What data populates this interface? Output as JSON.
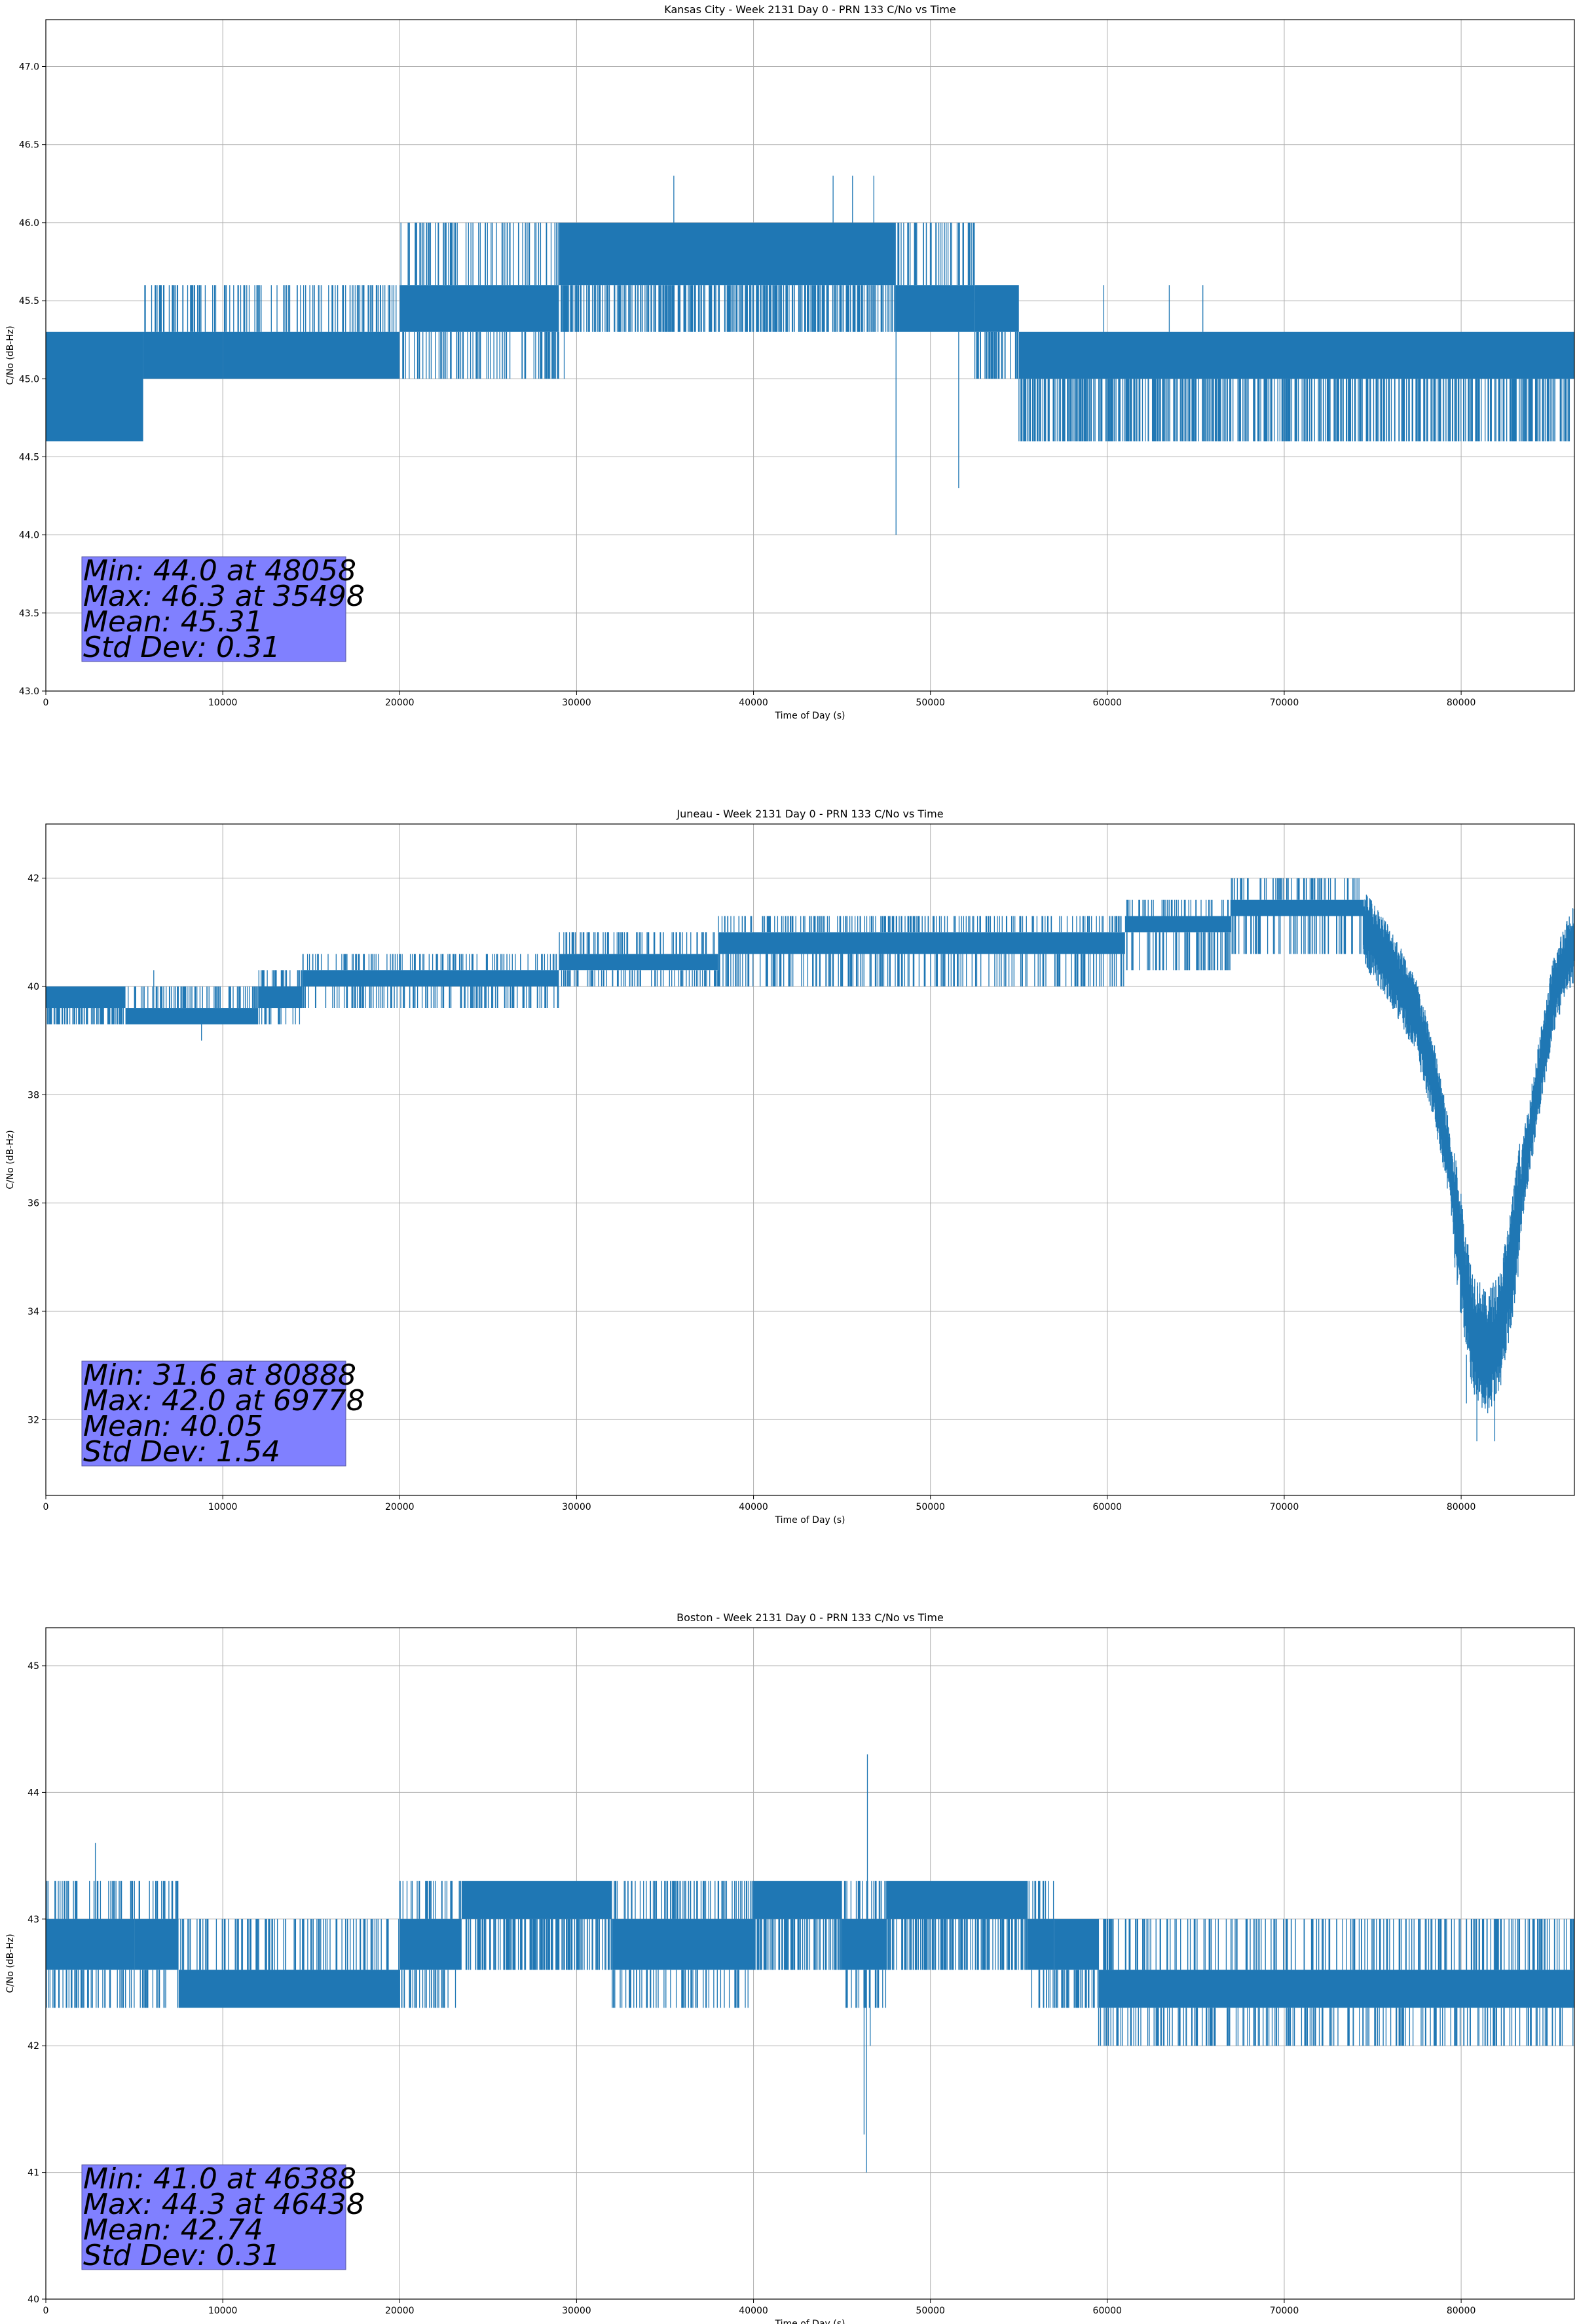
{
  "page": {
    "background": "#ffffff"
  },
  "style": {
    "series_color": "#1f77b4",
    "grid_color": "#b0b0b0",
    "stats_box_color": "#8080ff",
    "axis_color": "#000000"
  },
  "chart_data": [
    {
      "type": "line",
      "title": "Kansas City - Week 2131 Day 0 - PRN 133 C/No vs Time",
      "xlabel": "Time of Day (s)",
      "ylabel": "C/No (dB-Hz)",
      "xlim": [
        0,
        86400
      ],
      "ylim": [
        43.0,
        47.3
      ],
      "xticks": [
        0,
        10000,
        20000,
        30000,
        40000,
        50000,
        60000,
        70000,
        80000
      ],
      "xtick_labels": [
        "0",
        "10000",
        "20000",
        "30000",
        "40000",
        "50000",
        "60000",
        "70000",
        "80000"
      ],
      "yticks": [
        43.0,
        43.5,
        44.0,
        44.5,
        45.0,
        45.5,
        46.0,
        46.5,
        47.0
      ],
      "ytick_labels": [
        "43.0",
        "43.5",
        "44.0",
        "44.5",
        "45.0",
        "45.5",
        "46.0",
        "46.5",
        "47.0"
      ],
      "grid": true,
      "stats": [
        "Min: 44.0 at 48058",
        "Max: 46.3 at 35498",
        "Mean: 45.31",
        "Std Dev: 0.31"
      ],
      "series": [
        {
          "values_note_free": true,
          "bands": [
            {
              "x0": 0,
              "x1": 5500,
              "lo": 44.6,
              "hi": 45.3,
              "spike_lo": 44.6,
              "spike_hi": 45.3
            },
            {
              "x0": 5500,
              "x1": 10000,
              "lo": 45.0,
              "hi": 45.3,
              "spike_lo": 45.0,
              "spike_hi": 45.6
            },
            {
              "x0": 10000,
              "x1": 20000,
              "lo": 45.0,
              "hi": 45.3,
              "spike_lo": 45.0,
              "spike_hi": 45.6
            },
            {
              "x0": 20000,
              "x1": 29000,
              "lo": 45.3,
              "hi": 45.6,
              "spike_lo": 45.0,
              "spike_hi": 46.0
            },
            {
              "x0": 29000,
              "x1": 48000,
              "lo": 45.6,
              "hi": 46.0,
              "spike_lo": 45.3,
              "spike_hi": 46.0
            },
            {
              "x0": 48000,
              "x1": 52500,
              "lo": 45.3,
              "hi": 45.6,
              "spike_lo": 45.3,
              "spike_hi": 46.0
            },
            {
              "x0": 52500,
              "x1": 55000,
              "lo": 45.3,
              "hi": 45.6,
              "spike_lo": 45.0,
              "spike_hi": 45.6
            },
            {
              "x0": 55000,
              "x1": 86400,
              "lo": 45.0,
              "hi": 45.3,
              "spike_lo": 44.6,
              "spike_hi": 45.3
            }
          ],
          "events": [
            [
              35498,
              46.3
            ],
            [
              44500,
              46.3
            ],
            [
              45600,
              46.3
            ],
            [
              46800,
              46.3
            ],
            [
              48058,
              44.0
            ],
            [
              51600,
              44.3
            ],
            [
              23300,
              45.0
            ],
            [
              29300,
              45.0
            ],
            [
              59800,
              45.6
            ],
            [
              63500,
              45.6
            ],
            [
              65400,
              45.6
            ]
          ]
        }
      ]
    },
    {
      "type": "line",
      "title": "Juneau - Week 2131 Day 0 - PRN 133 C/No vs Time",
      "xlabel": "Time of Day (s)",
      "ylabel": "C/No (dB-Hz)",
      "xlim": [
        0,
        86400
      ],
      "ylim": [
        30.6,
        43.0
      ],
      "xticks": [
        0,
        10000,
        20000,
        30000,
        40000,
        50000,
        60000,
        70000,
        80000
      ],
      "xtick_labels": [
        "0",
        "10000",
        "20000",
        "30000",
        "40000",
        "50000",
        "60000",
        "70000",
        "80000"
      ],
      "yticks": [
        32,
        34,
        36,
        38,
        40,
        42
      ],
      "ytick_labels": [
        "32",
        "34",
        "36",
        "38",
        "40",
        "42"
      ],
      "grid": true,
      "stats": [
        "Min: 31.6 at 80888",
        "Max: 42.0 at 69778",
        "Mean: 40.05",
        "Std Dev: 1.54"
      ],
      "series": [
        {
          "bands": [
            {
              "x0": 0,
              "x1": 4500,
              "lo": 39.6,
              "hi": 40.0,
              "spike_lo": 39.3,
              "spike_hi": 40.0
            },
            {
              "x0": 4500,
              "x1": 12000,
              "lo": 39.3,
              "hi": 39.6,
              "spike_lo": 39.3,
              "spike_hi": 40.0
            },
            {
              "x0": 12000,
              "x1": 14500,
              "lo": 39.6,
              "hi": 40.0,
              "spike_lo": 39.3,
              "spike_hi": 40.3
            },
            {
              "x0": 14500,
              "x1": 29000,
              "lo": 40.0,
              "hi": 40.3,
              "spike_lo": 39.6,
              "spike_hi": 40.6
            },
            {
              "x0": 29000,
              "x1": 38000,
              "lo": 40.3,
              "hi": 40.6,
              "spike_lo": 40.0,
              "spike_hi": 41.0
            },
            {
              "x0": 38000,
              "x1": 61000,
              "lo": 40.6,
              "hi": 41.0,
              "spike_lo": 40.0,
              "spike_hi": 41.3
            },
            {
              "x0": 61000,
              "x1": 67000,
              "lo": 41.0,
              "hi": 41.3,
              "spike_lo": 40.3,
              "spike_hi": 41.6
            },
            {
              "x0": 67000,
              "x1": 74500,
              "lo": 41.3,
              "hi": 41.6,
              "spike_lo": 40.6,
              "spike_hi": 42.0
            }
          ],
          "dip_profile": [
            [
              74500,
              41.1
            ],
            [
              76000,
              40.4
            ],
            [
              77500,
              39.4
            ],
            [
              78500,
              38.2
            ],
            [
              79300,
              36.8
            ],
            [
              80000,
              35.0
            ],
            [
              80600,
              33.7
            ],
            [
              81400,
              33.2
            ],
            [
              82200,
              33.6
            ],
            [
              82900,
              35.0
            ],
            [
              83600,
              36.7
            ],
            [
              84400,
              38.3
            ],
            [
              85200,
              39.8
            ],
            [
              86000,
              40.6
            ],
            [
              86400,
              40.8
            ]
          ],
          "dip_spread": 0.6,
          "events": [
            [
              69778,
              42.0
            ],
            [
              80888,
              31.6
            ],
            [
              81900,
              31.6
            ],
            [
              80300,
              32.3
            ],
            [
              8800,
              39.0
            ],
            [
              6100,
              40.3
            ]
          ]
        }
      ]
    },
    {
      "type": "line",
      "title": "Boston - Week 2131 Day 0 - PRN 133 C/No vs Time",
      "xlabel": "Time of Day (s)",
      "ylabel": "C/No (dB-Hz)",
      "xlim": [
        0,
        86400
      ],
      "ylim": [
        40.0,
        45.3
      ],
      "xticks": [
        0,
        10000,
        20000,
        30000,
        40000,
        50000,
        60000,
        70000,
        80000
      ],
      "xtick_labels": [
        "0",
        "10000",
        "20000",
        "30000",
        "40000",
        "50000",
        "60000",
        "70000",
        "80000"
      ],
      "yticks": [
        40,
        41,
        42,
        43,
        44,
        45
      ],
      "ytick_labels": [
        "40",
        "41",
        "42",
        "43",
        "44",
        "45"
      ],
      "grid": true,
      "stats": [
        "Min: 41.0 at 46388",
        "Max: 44.3 at 46438",
        "Mean: 42.74",
        "Std Dev: 0.31"
      ],
      "series": [
        {
          "bands": [
            {
              "x0": 0,
              "x1": 5000,
              "lo": 42.6,
              "hi": 43.0,
              "spike_lo": 42.3,
              "spike_hi": 43.3
            },
            {
              "x0": 5000,
              "x1": 7500,
              "lo": 42.6,
              "hi": 43.0,
              "spike_lo": 42.3,
              "spike_hi": 43.3
            },
            {
              "x0": 7500,
              "x1": 20000,
              "lo": 42.3,
              "hi": 42.6,
              "spike_lo": 42.3,
              "spike_hi": 43.0
            },
            {
              "x0": 20000,
              "x1": 23500,
              "lo": 42.6,
              "hi": 43.0,
              "spike_lo": 42.3,
              "spike_hi": 43.3
            },
            {
              "x0": 23500,
              "x1": 32000,
              "lo": 43.0,
              "hi": 43.3,
              "spike_lo": 42.6,
              "spike_hi": 43.3
            },
            {
              "x0": 32000,
              "x1": 40000,
              "lo": 42.6,
              "hi": 43.0,
              "spike_lo": 42.3,
              "spike_hi": 43.3
            },
            {
              "x0": 40000,
              "x1": 45000,
              "lo": 43.0,
              "hi": 43.3,
              "spike_lo": 42.6,
              "spike_hi": 43.3
            },
            {
              "x0": 45000,
              "x1": 47500,
              "lo": 42.6,
              "hi": 43.0,
              "spike_lo": 42.3,
              "spike_hi": 43.3
            },
            {
              "x0": 47500,
              "x1": 55500,
              "lo": 43.0,
              "hi": 43.3,
              "spike_lo": 42.6,
              "spike_hi": 43.3
            },
            {
              "x0": 55500,
              "x1": 57000,
              "lo": 42.6,
              "hi": 43.0,
              "spike_lo": 42.3,
              "spike_hi": 43.3
            },
            {
              "x0": 57000,
              "x1": 59500,
              "lo": 42.6,
              "hi": 43.0,
              "spike_lo": 42.3,
              "spike_hi": 43.0
            },
            {
              "x0": 59500,
              "x1": 86400,
              "lo": 42.3,
              "hi": 42.6,
              "spike_lo": 42.0,
              "spike_hi": 43.0
            }
          ],
          "events": [
            [
              46388,
              41.0
            ],
            [
              46438,
              44.3
            ],
            [
              46250,
              41.3
            ],
            [
              46600,
              42.0
            ],
            [
              2800,
              43.6
            ]
          ]
        }
      ]
    }
  ]
}
